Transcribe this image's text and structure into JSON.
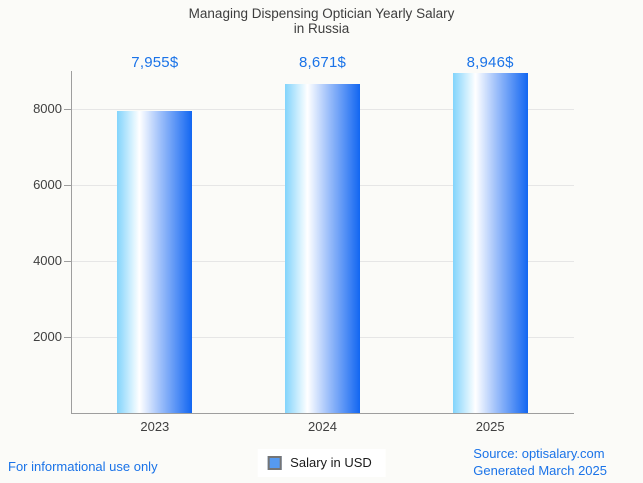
{
  "title": {
    "line1": "Managing Dispensing Optician Yearly Salary",
    "line2": "in Russia"
  },
  "chart_data": {
    "type": "bar",
    "title": "Managing Dispensing Optician Yearly Salary in Russia",
    "categories": [
      "2023",
      "2024",
      "2025"
    ],
    "values": [
      7955,
      8671,
      8946
    ],
    "value_labels": [
      "7,955$",
      "8,671$",
      "8,946$"
    ],
    "series": [
      {
        "name": "Salary in USD",
        "values": [
          7955,
          8671,
          8946
        ]
      }
    ],
    "xlabel": "",
    "ylabel": "",
    "ylim": [
      0,
      9000
    ],
    "yticks": [
      2000,
      4000,
      6000,
      8000
    ],
    "grid": true,
    "legend_position": "bottom",
    "bar_gradient": [
      "#82d4fc",
      "#ffffff",
      "#1266f1"
    ],
    "value_label_color": "#1a73e8"
  },
  "legend": {
    "label": "Salary in USD",
    "swatch_color": "#569af0"
  },
  "footer": {
    "left": "For informational use only",
    "source": "Source: optisalary.com",
    "generated": "Generated March 2025"
  },
  "colors": {
    "accent_blue": "#1a73e8",
    "axis": "#9e9e9e",
    "grid": "#e6e6e6",
    "text": "#3d3d3d",
    "background": "#fbfbf8"
  }
}
